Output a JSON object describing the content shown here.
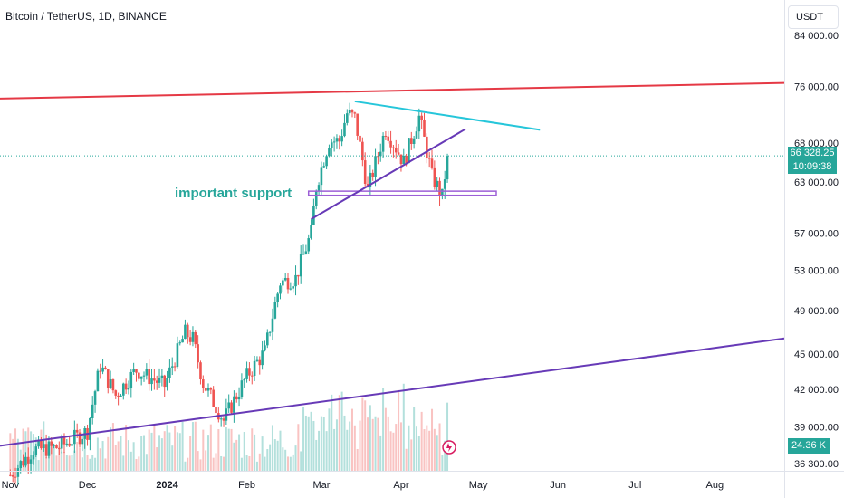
{
  "header": {
    "title": "Bitcoin / TetherUS, 1D, BINANCE",
    "currency": "USDT"
  },
  "price_badge": {
    "price": "66 328.25",
    "countdown": "10:09:38"
  },
  "volume_badge": "24.36 K",
  "annotation": "important support",
  "colors": {
    "up": "#26a69a",
    "down": "#ef5350",
    "resistance": "#e53945",
    "trendline_cyan": "#26c6da",
    "trendline_purple": "#673ab7",
    "support_zone": "#9c5fd6"
  },
  "chart_data": {
    "type": "candlestick",
    "y_scale": "log",
    "ylim": [
      35800,
      90000
    ],
    "y_ticks": [
      {
        "value": 84000,
        "label": "84 000.00"
      },
      {
        "value": 76000,
        "label": "76 000.00"
      },
      {
        "value": 68000,
        "label": "68 000.00"
      },
      {
        "value": 63000,
        "label": "63 000.00"
      },
      {
        "value": 57000,
        "label": "57 000.00"
      },
      {
        "value": 53000,
        "label": "53 000.00"
      },
      {
        "value": 49000,
        "label": "49 000.00"
      },
      {
        "value": 45000,
        "label": "45 000.00"
      },
      {
        "value": 42000,
        "label": "42 000.00"
      },
      {
        "value": 39000,
        "label": "39 000.00"
      },
      {
        "value": 36300,
        "label": "36 300.00"
      }
    ],
    "x_ticks": [
      {
        "date": "2023-11-01",
        "label": "Nov"
      },
      {
        "date": "2023-12-01",
        "label": "Dec"
      },
      {
        "date": "2024-01-01",
        "label": "2024"
      },
      {
        "date": "2024-02-01",
        "label": "Feb"
      },
      {
        "date": "2024-03-01",
        "label": "Mar"
      },
      {
        "date": "2024-04-01",
        "label": "Apr"
      },
      {
        "date": "2024-05-01",
        "label": "May"
      },
      {
        "date": "2024-06-01",
        "label": "Jun"
      },
      {
        "date": "2024-07-01",
        "label": "Jul"
      },
      {
        "date": "2024-08-01",
        "label": "Aug"
      }
    ],
    "x_range": [
      "2023-10-28",
      "2024-08-28"
    ],
    "last_price": 66328.25,
    "closes": [
      {
        "date": "2023-11-01",
        "close": 35500
      },
      {
        "date": "2023-11-10",
        "close": 37300
      },
      {
        "date": "2023-11-20",
        "close": 37500
      },
      {
        "date": "2023-12-01",
        "close": 38700
      },
      {
        "date": "2023-12-06",
        "close": 44000
      },
      {
        "date": "2023-12-12",
        "close": 41500
      },
      {
        "date": "2023-12-20",
        "close": 43600
      },
      {
        "date": "2023-12-31",
        "close": 42300
      },
      {
        "date": "2024-01-08",
        "close": 46900
      },
      {
        "date": "2024-01-11",
        "close": 46300
      },
      {
        "date": "2024-01-15",
        "close": 42500
      },
      {
        "date": "2024-01-23",
        "close": 39500
      },
      {
        "date": "2024-02-01",
        "close": 43100
      },
      {
        "date": "2024-02-08",
        "close": 45200
      },
      {
        "date": "2024-02-14",
        "close": 51800
      },
      {
        "date": "2024-02-20",
        "close": 52200
      },
      {
        "date": "2024-02-26",
        "close": 57000
      },
      {
        "date": "2024-02-28",
        "close": 62500
      },
      {
        "date": "2024-03-04",
        "close": 68300
      },
      {
        "date": "2024-03-08",
        "close": 68300
      },
      {
        "date": "2024-03-11",
        "close": 72100
      },
      {
        "date": "2024-03-14",
        "close": 71400
      },
      {
        "date": "2024-03-19",
        "close": 62000
      },
      {
        "date": "2024-03-26",
        "close": 69900
      },
      {
        "date": "2024-04-02",
        "close": 65500
      },
      {
        "date": "2024-04-08",
        "close": 71600
      },
      {
        "date": "2024-04-13",
        "close": 63800
      },
      {
        "date": "2024-04-17",
        "close": 61200
      },
      {
        "date": "2024-04-19",
        "close": 66328
      }
    ],
    "lines": [
      {
        "name": "resistance",
        "from": {
          "date": "2023-10-28",
          "value": 74200
        },
        "to": {
          "date": "2024-08-28",
          "value": 76500
        }
      },
      {
        "name": "descending",
        "from": {
          "date": "2024-03-14",
          "value": 73800
        },
        "to": {
          "date": "2024-05-25",
          "value": 69800
        }
      },
      {
        "name": "rising",
        "from": {
          "date": "2024-02-26",
          "value": 58600
        },
        "to": {
          "date": "2024-04-26",
          "value": 69900
        }
      },
      {
        "name": "long-support",
        "from": {
          "date": "2023-10-28",
          "value": 37600
        },
        "to": {
          "date": "2024-08-28",
          "value": 46400
        }
      }
    ],
    "support_zone": {
      "from": "2024-02-25",
      "to": "2024-05-08",
      "low": 61400,
      "high": 61900
    }
  }
}
